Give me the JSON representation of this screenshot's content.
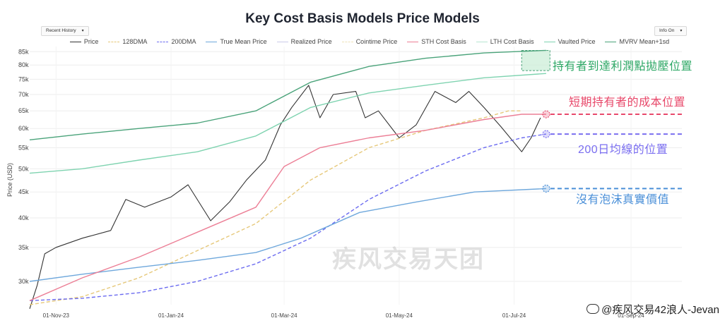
{
  "chart_data": {
    "type": "line",
    "title": "Key Cost Basis Models Price Models",
    "ylabel": "Price (USD)",
    "y_scale": "log",
    "ylim": [
      27000,
      87000
    ],
    "x_range": [
      "2023-10-18",
      "2024-09-28"
    ],
    "x_ticks": [
      "01-Nov-23",
      "01-Jan-24",
      "01-Mar-24",
      "01-May-24",
      "01-Jul-24",
      "01-Sep-24"
    ],
    "x_tick_dates": [
      "2023-11-01",
      "2024-01-01",
      "2024-03-01",
      "2024-05-01",
      "2024-07-01",
      "2024-09-01"
    ],
    "y_ticks": [
      "85k",
      "80k",
      "75k",
      "70k",
      "65k",
      "60k",
      "55k",
      "50k",
      "45k",
      "40k",
      "35k",
      "30k"
    ],
    "y_tick_values": [
      85000,
      80000,
      75000,
      70000,
      65000,
      60000,
      55000,
      50000,
      45000,
      40000,
      35000,
      30000
    ],
    "grid": true,
    "legend_placement": "top",
    "series": [
      {
        "name": "Price",
        "color": "#333333",
        "style": "solid",
        "points": [
          [
            "2023-10-18",
            26500
          ],
          [
            "2023-10-22",
            29500
          ],
          [
            "2023-10-26",
            34000
          ],
          [
            "2023-11-01",
            35000
          ],
          [
            "2023-11-15",
            36500
          ],
          [
            "2023-11-30",
            37800
          ],
          [
            "2023-12-08",
            43500
          ],
          [
            "2023-12-18",
            42000
          ],
          [
            "2024-01-01",
            44000
          ],
          [
            "2024-01-10",
            46500
          ],
          [
            "2024-01-22",
            39500
          ],
          [
            "2024-02-01",
            43000
          ],
          [
            "2024-02-10",
            47500
          ],
          [
            "2024-02-20",
            52000
          ],
          [
            "2024-02-28",
            61000
          ],
          [
            "2024-03-05",
            66000
          ],
          [
            "2024-03-14",
            73000
          ],
          [
            "2024-03-20",
            63000
          ],
          [
            "2024-03-27",
            70000
          ],
          [
            "2024-04-08",
            71000
          ],
          [
            "2024-04-13",
            63000
          ],
          [
            "2024-04-20",
            65000
          ],
          [
            "2024-05-01",
            57500
          ],
          [
            "2024-05-10",
            61000
          ],
          [
            "2024-05-20",
            71000
          ],
          [
            "2024-05-31",
            67500
          ],
          [
            "2024-06-07",
            71000
          ],
          [
            "2024-06-15",
            66000
          ],
          [
            "2024-06-24",
            60500
          ],
          [
            "2024-07-05",
            54000
          ],
          [
            "2024-07-10",
            57500
          ],
          [
            "2024-07-15",
            63000
          ]
        ]
      },
      {
        "name": "128DMA",
        "color": "#e6c87a",
        "style": "dashed",
        "points": [
          [
            "2023-10-18",
            27000
          ],
          [
            "2023-11-15",
            28000
          ],
          [
            "2023-12-15",
            30500
          ],
          [
            "2024-01-15",
            34500
          ],
          [
            "2024-02-15",
            39000
          ],
          [
            "2024-03-15",
            47500
          ],
          [
            "2024-04-15",
            55000
          ],
          [
            "2024-05-15",
            59500
          ],
          [
            "2024-06-15",
            63000
          ],
          [
            "2024-06-28",
            65000
          ],
          [
            "2024-07-05",
            65000
          ]
        ]
      },
      {
        "name": "200DMA",
        "color": "#6b6bf0",
        "style": "dashed",
        "points": [
          [
            "2023-10-18",
            27500
          ],
          [
            "2023-11-15",
            27800
          ],
          [
            "2023-12-15",
            28500
          ],
          [
            "2024-01-15",
            30000
          ],
          [
            "2024-02-15",
            32500
          ],
          [
            "2024-03-15",
            36500
          ],
          [
            "2024-04-15",
            43500
          ],
          [
            "2024-05-15",
            49500
          ],
          [
            "2024-06-15",
            55000
          ],
          [
            "2024-07-05",
            57500
          ],
          [
            "2024-07-18",
            58500
          ]
        ]
      },
      {
        "name": "True Mean Price",
        "color": "#6fa8dc",
        "style": "solid",
        "points": [
          [
            "2023-10-18",
            30000
          ],
          [
            "2023-11-15",
            31000
          ],
          [
            "2023-12-15",
            32000
          ],
          [
            "2024-01-15",
            33000
          ],
          [
            "2024-02-15",
            34200
          ],
          [
            "2024-03-10",
            36500
          ],
          [
            "2024-04-10",
            41000
          ],
          [
            "2024-05-10",
            43000
          ],
          [
            "2024-06-10",
            45000
          ],
          [
            "2024-07-18",
            45700
          ]
        ]
      },
      {
        "name": "Realized Price",
        "color": "#c9c9e8",
        "style": "solid",
        "points": []
      },
      {
        "name": "Cointime Price",
        "color": "#efe2b8",
        "style": "dashed",
        "points": []
      },
      {
        "name": "STH Cost Basis",
        "color": "#ec7f96",
        "style": "solid",
        "points": [
          [
            "2023-10-18",
            27500
          ],
          [
            "2023-11-15",
            30500
          ],
          [
            "2023-12-15",
            33500
          ],
          [
            "2024-01-15",
            37500
          ],
          [
            "2024-02-15",
            42000
          ],
          [
            "2024-03-01",
            50500
          ],
          [
            "2024-03-20",
            55000
          ],
          [
            "2024-04-15",
            57500
          ],
          [
            "2024-05-15",
            59500
          ],
          [
            "2024-06-15",
            62500
          ],
          [
            "2024-07-05",
            64000
          ],
          [
            "2024-07-18",
            64000
          ]
        ]
      },
      {
        "name": "LTH Cost Basis",
        "color": "#b8e6d2",
        "style": "solid",
        "points": []
      },
      {
        "name": "Vaulted Price",
        "color": "#7fd3b0",
        "style": "solid",
        "points": [
          [
            "2023-10-18",
            49000
          ],
          [
            "2023-11-15",
            50000
          ],
          [
            "2023-12-15",
            52000
          ],
          [
            "2024-01-15",
            54000
          ],
          [
            "2024-02-15",
            58000
          ],
          [
            "2024-03-15",
            66000
          ],
          [
            "2024-04-15",
            70500
          ],
          [
            "2024-05-15",
            73000
          ],
          [
            "2024-06-15",
            75500
          ],
          [
            "2024-07-18",
            77000
          ]
        ]
      },
      {
        "name": "MVRV Mean+1sd",
        "color": "#4aa37a",
        "style": "solid",
        "points": [
          [
            "2023-10-18",
            57000
          ],
          [
            "2023-11-15",
            58500
          ],
          [
            "2023-12-15",
            60000
          ],
          [
            "2024-01-15",
            61500
          ],
          [
            "2024-02-15",
            65000
          ],
          [
            "2024-03-15",
            74000
          ],
          [
            "2024-04-15",
            79500
          ],
          [
            "2024-05-15",
            82500
          ],
          [
            "2024-06-15",
            84500
          ],
          [
            "2024-07-18",
            85500
          ]
        ]
      }
    ]
  },
  "controls": {
    "history_dropdown": "Recent History",
    "info_dropdown": "Info On"
  },
  "annotations": [
    {
      "text": "持有者到達利潤點拋壓位置",
      "color": "#2ea866",
      "target": "mvrv-mean-1sd",
      "y_value": 80000
    },
    {
      "text": "短期持有者的成本位置",
      "color": "#e8486a",
      "target": "sth-cost-basis",
      "y_value": 64000
    },
    {
      "text": "200日均線的位置",
      "color": "#7a6ef0",
      "target": "200dma",
      "y_value": 58500
    },
    {
      "text": "沒有泡沫真實價值",
      "color": "#4a8fd8",
      "target": "true-mean-price",
      "y_value": 45700
    }
  ],
  "watermark": "疾风交易天团",
  "credit": "@疾风交易42浪人-Jevan"
}
